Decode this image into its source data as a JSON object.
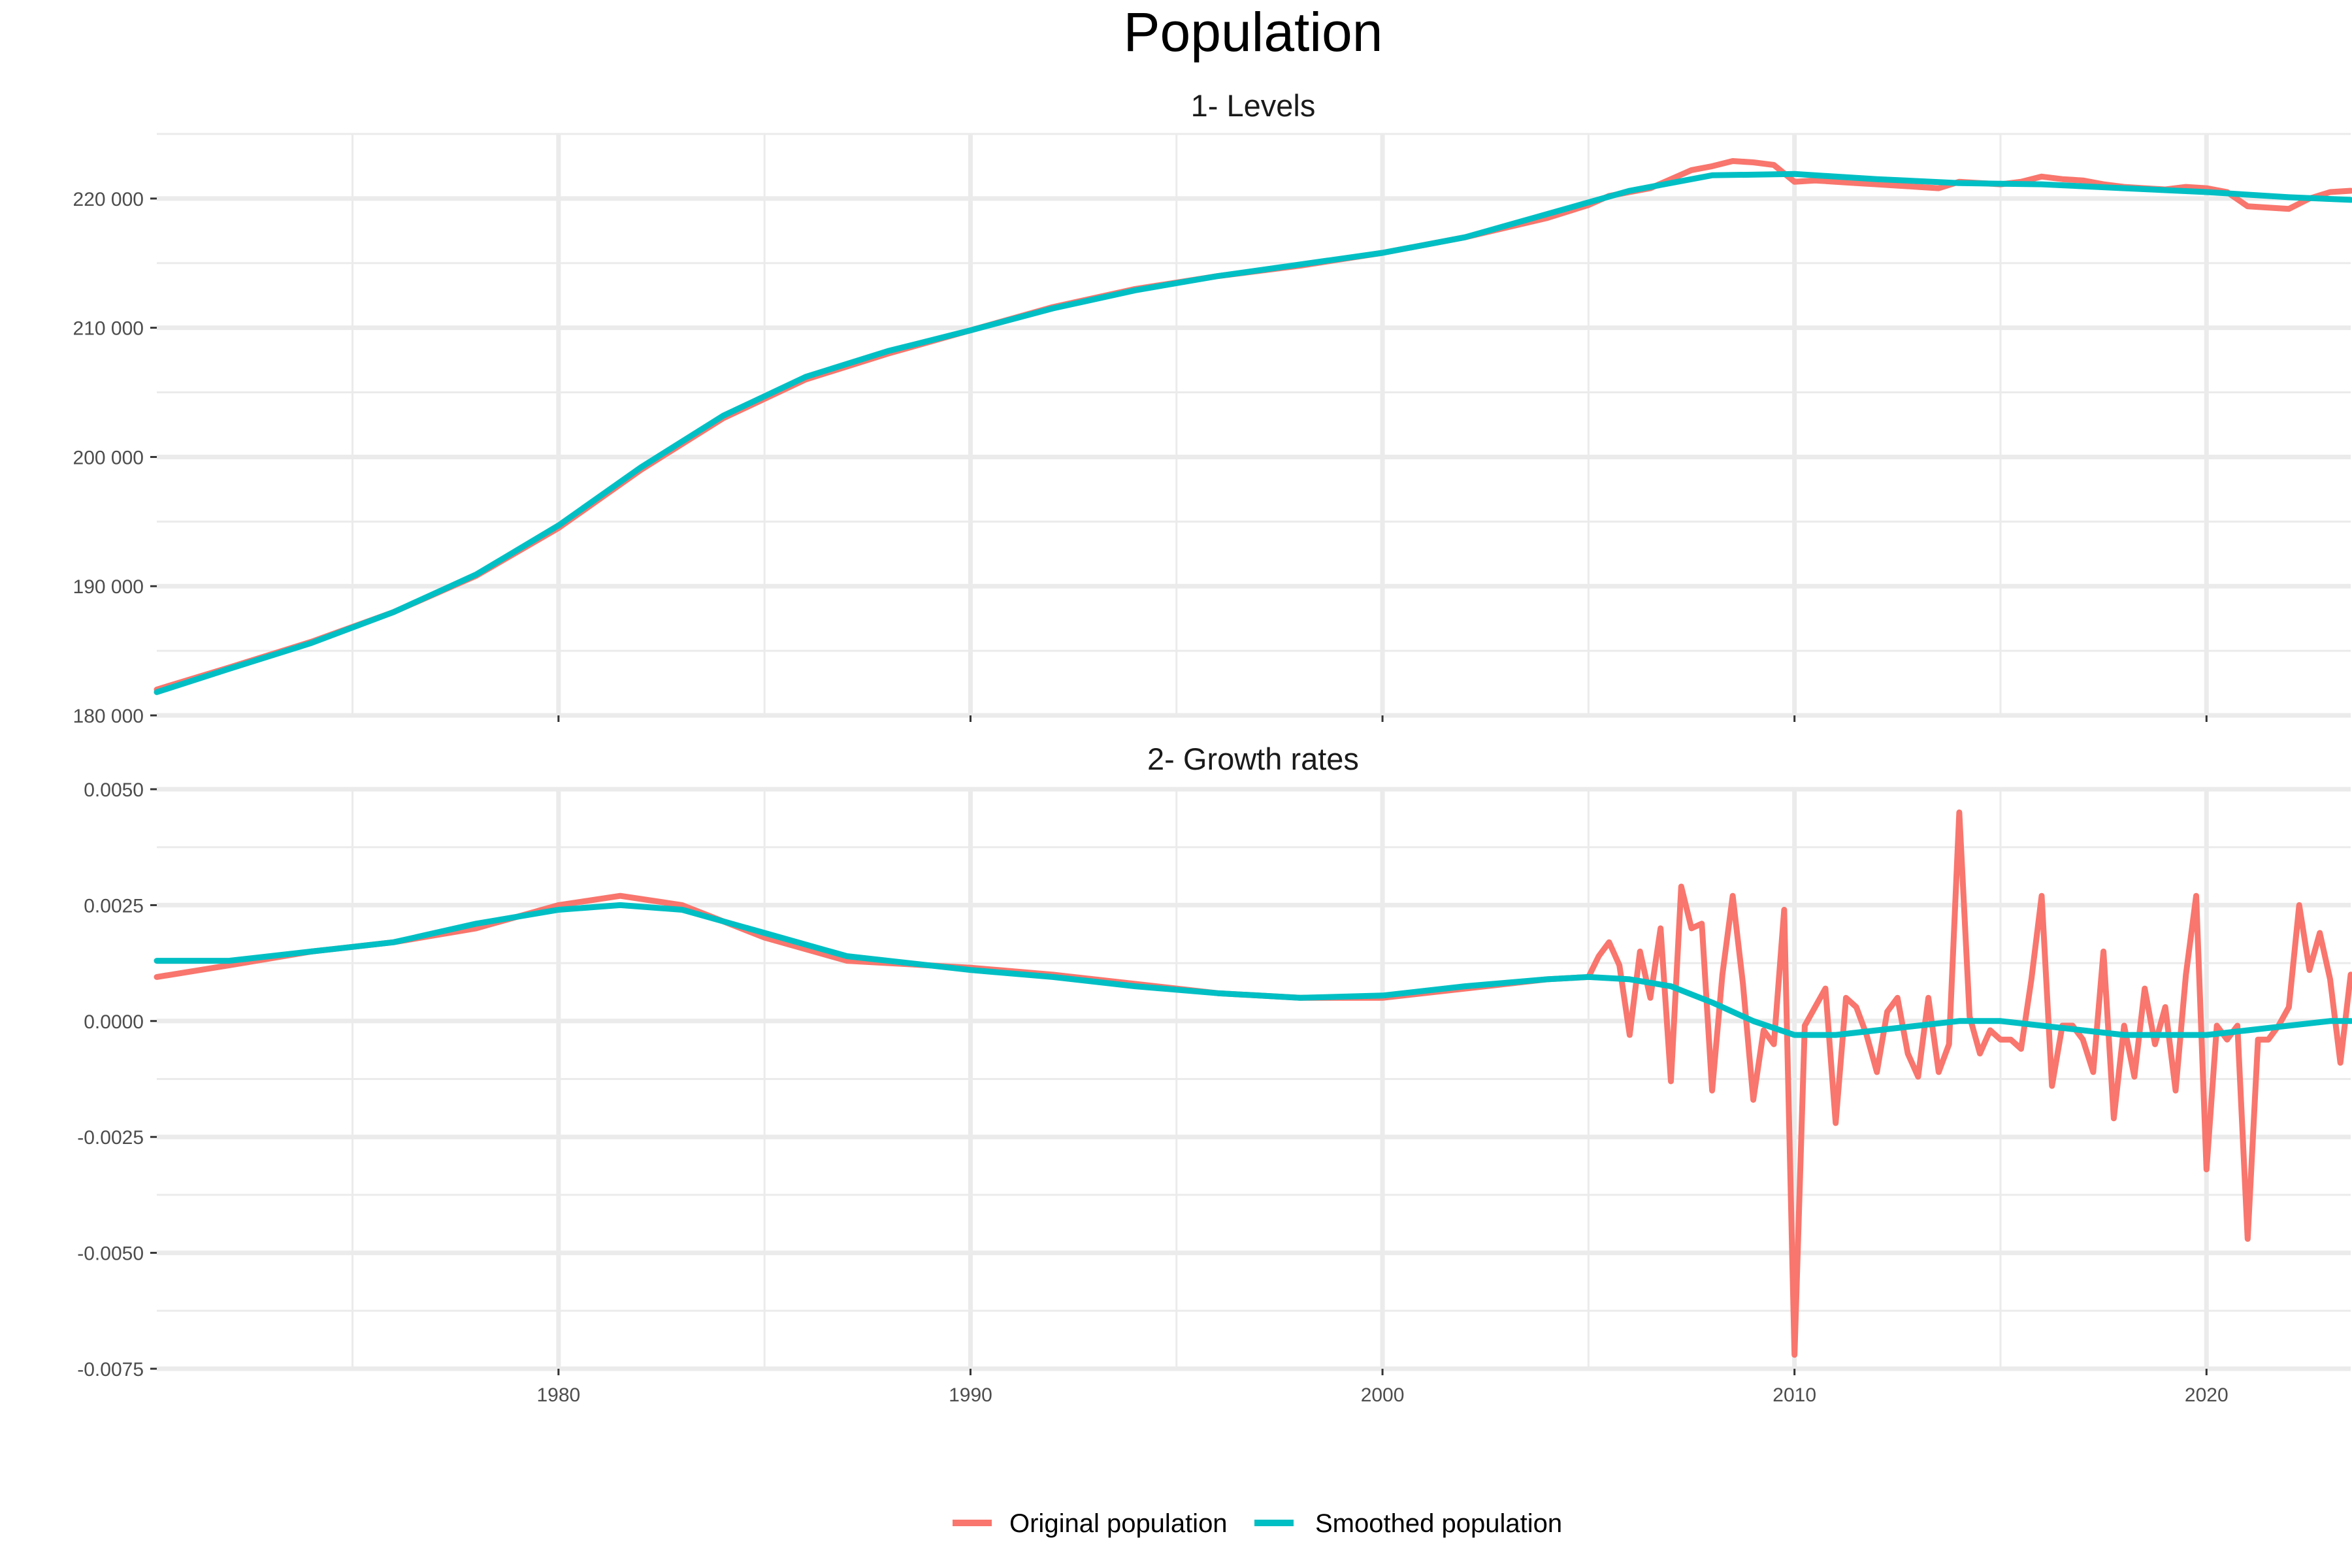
{
  "chart_data": {
    "type": "line",
    "title": "Population",
    "x_ticks": [
      1980,
      1990,
      2000,
      2010,
      2020
    ],
    "xlim": [
      1970.25,
      2023.5
    ],
    "legend": {
      "placement": "bottom",
      "entries": [
        {
          "label": "Original population",
          "color": "#F8766D"
        },
        {
          "label": "Smoothed population",
          "color": "#00BFC4"
        }
      ]
    },
    "panels": [
      {
        "name": "1- Levels",
        "ylim": [
          180000,
          225000
        ],
        "y_ticks": [
          180000,
          190000,
          200000,
          210000,
          220000
        ],
        "y_tick_labels": [
          "180 000",
          "190 000",
          "200 000",
          "210 000",
          "220 000"
        ],
        "series": [
          {
            "name": "Original population",
            "color": "#F8766D",
            "x": [
              1970.25,
              1972,
              1974,
              1976,
              1978,
              1980,
              1982,
              1984,
              1986,
              1988,
              1990,
              1992,
              1994,
              1996,
              1998,
              2000,
              2002,
              2004,
              2005,
              2005.5,
              2006,
              2006.5,
              2007,
              2007.5,
              2008,
              2008.5,
              2009,
              2009.5,
              2010,
              2010.5,
              2011,
              2011.5,
              2012,
              2012.5,
              2013,
              2013.5,
              2014,
              2014.5,
              2015,
              2015.5,
              2016,
              2016.5,
              2017,
              2017.5,
              2018,
              2018.5,
              2019,
              2019.5,
              2020,
              2020.5,
              2021,
              2021.5,
              2022,
              2022.5,
              2023,
              2023.5
            ],
            "y": [
              182000,
              183700,
              185700,
              188000,
              190800,
              194500,
              199000,
              203000,
              206000,
              208000,
              209800,
              211600,
              213000,
              214000,
              214800,
              215800,
              217000,
              218500,
              219500,
              220200,
              220500,
              220800,
              221500,
              222200,
              222500,
              222900,
              222800,
              222600,
              221300,
              221400,
              221300,
              221200,
              221100,
              221000,
              220900,
              220800,
              221300,
              221200,
              221100,
              221300,
              221700,
              221500,
              221400,
              221100,
              220900,
              220800,
              220700,
              220900,
              220800,
              220500,
              219400,
              219300,
              219200,
              220000,
              220500,
              220600
            ]
          },
          {
            "name": "Smoothed population",
            "color": "#00BFC4",
            "x": [
              1970.25,
              1972,
              1974,
              1976,
              1978,
              1980,
              1982,
              1984,
              1986,
              1988,
              1990,
              1992,
              1994,
              1996,
              1998,
              2000,
              2002,
              2004,
              2006,
              2008,
              2010,
              2012,
              2014,
              2016,
              2018,
              2020,
              2022,
              2023.5
            ],
            "y": [
              181800,
              183600,
              185600,
              188000,
              190900,
              194700,
              199200,
              203200,
              206200,
              208200,
              209800,
              211500,
              212900,
              214000,
              214900,
              215800,
              217000,
              218800,
              220600,
              221800,
              221900,
              221500,
              221200,
              221100,
              220800,
              220500,
              220100,
              219900
            ]
          }
        ]
      },
      {
        "name": "2- Growth rates",
        "ylim": [
          -0.0075,
          0.005
        ],
        "y_ticks": [
          -0.0075,
          -0.005,
          -0.0025,
          0.0,
          0.0025,
          0.005
        ],
        "y_tick_labels": [
          "-0.0075",
          "-0.0050",
          "-0.0025",
          "0.0000",
          "0.0025",
          "0.0050"
        ],
        "series": [
          {
            "name": "Original population",
            "color": "#F8766D",
            "x": [
              1970.25,
              1972,
              1974,
              1976,
              1978,
              1980,
              1981.5,
              1983,
              1985,
              1987,
              1990,
              1992,
              1994,
              1996,
              1998,
              2000,
              2002,
              2004,
              2005,
              2005.25,
              2005.5,
              2005.75,
              2006,
              2006.25,
              2006.5,
              2006.75,
              2007,
              2007.25,
              2007.5,
              2007.75,
              2008,
              2008.25,
              2008.5,
              2008.75,
              2009,
              2009.25,
              2009.5,
              2009.75,
              2010,
              2010.25,
              2010.5,
              2010.75,
              2011,
              2011.25,
              2011.5,
              2011.75,
              2012,
              2012.25,
              2012.5,
              2012.75,
              2013,
              2013.25,
              2013.5,
              2013.75,
              2014,
              2014.25,
              2014.5,
              2014.75,
              2015,
              2015.25,
              2015.5,
              2015.75,
              2016,
              2016.25,
              2016.5,
              2016.75,
              2017,
              2017.25,
              2017.5,
              2017.75,
              2018,
              2018.25,
              2018.5,
              2018.75,
              2019,
              2019.25,
              2019.5,
              2019.75,
              2020,
              2020.25,
              2020.5,
              2020.75,
              2021,
              2021.25,
              2021.5,
              2021.75,
              2022,
              2022.25,
              2022.5,
              2022.75,
              2023,
              2023.25,
              2023.5
            ],
            "y": [
              0.00095,
              0.0012,
              0.0015,
              0.0017,
              0.002,
              0.0025,
              0.0027,
              0.0025,
              0.0018,
              0.0013,
              0.00115,
              0.001,
              0.0008,
              0.0006,
              0.0005,
              0.0005,
              0.0007,
              0.0009,
              0.00095,
              0.0014,
              0.0017,
              0.0012,
              -0.0003,
              0.0015,
              0.0005,
              0.002,
              -0.0013,
              0.0029,
              0.002,
              0.0021,
              -0.0015,
              0.001,
              0.0027,
              0.0008,
              -0.0017,
              -0.0002,
              -0.0005,
              0.0024,
              -0.0072,
              -0.0001,
              0.0003,
              0.0007,
              -0.0022,
              0.0005,
              0.0003,
              -0.0003,
              -0.0011,
              0.0002,
              0.0005,
              -0.0007,
              -0.0012,
              0.0005,
              -0.0011,
              -0.0005,
              0.0045,
              0.0001,
              -0.0007,
              -0.0002,
              -0.0004,
              -0.0004,
              -0.0006,
              0.0009,
              0.0027,
              -0.0014,
              -0.0001,
              -0.0001,
              -0.0004,
              -0.0011,
              0.0015,
              -0.0021,
              -0.0001,
              -0.0012,
              0.0007,
              -0.0005,
              0.0003,
              -0.0015,
              0.001,
              0.0027,
              -0.0032,
              -0.0001,
              -0.0004,
              -0.0001,
              -0.0047,
              -0.0004,
              -0.0004,
              -0.0001,
              0.0003,
              0.0025,
              0.0011,
              0.0019,
              0.0009,
              -0.0009,
              0.001
            ]
          },
          {
            "name": "Smoothed population",
            "color": "#00BFC4",
            "x": [
              1970.25,
              1972,
              1974,
              1976,
              1978,
              1980,
              1981.5,
              1983,
              1985,
              1987,
              1990,
              1992,
              1994,
              1996,
              1998,
              2000,
              2002,
              2004,
              2005,
              2006,
              2007,
              2008,
              2009,
              2010,
              2011,
              2012,
              2013,
              2014,
              2015,
              2016,
              2017,
              2018,
              2019,
              2020,
              2021,
              2022,
              2023,
              2023.5
            ],
            "y": [
              0.0013,
              0.0013,
              0.0015,
              0.0017,
              0.0021,
              0.0024,
              0.0025,
              0.0024,
              0.0019,
              0.0014,
              0.0011,
              0.00095,
              0.00075,
              0.0006,
              0.0005,
              0.00055,
              0.00075,
              0.0009,
              0.00095,
              0.0009,
              0.00075,
              0.0004,
              0.0,
              -0.0003,
              -0.0003,
              -0.0002,
              -0.0001,
              0.0,
              0.0,
              -0.0001,
              -0.0002,
              -0.0003,
              -0.0003,
              -0.0003,
              -0.0002,
              -0.0001,
              0.0,
              0.0
            ]
          }
        ]
      }
    ]
  }
}
